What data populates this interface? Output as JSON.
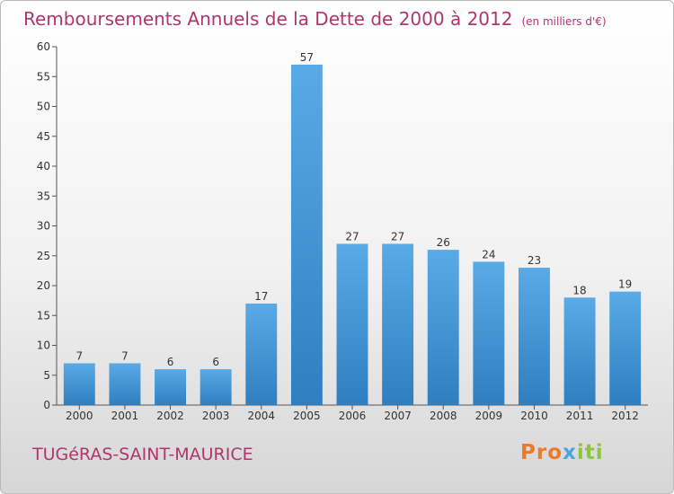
{
  "header": {
    "title": "Remboursements Annuels de la Dette de 2000 à 2012",
    "unit": "(en milliers d'€)"
  },
  "footer": {
    "place": "TUGéRAS-SAINT-MAURICE",
    "brand": "Proxiti"
  },
  "colors": {
    "accent": "#b0356e",
    "bar_light": "#5aaae6",
    "bar_dark": "#2f7fc0"
  },
  "chart_data": {
    "type": "bar",
    "categories": [
      "2000",
      "2001",
      "2002",
      "2003",
      "2004",
      "2005",
      "2006",
      "2007",
      "2008",
      "2009",
      "2010",
      "2011",
      "2012"
    ],
    "values": [
      7,
      7,
      6,
      6,
      17,
      57,
      27,
      27,
      26,
      24,
      23,
      18,
      19
    ],
    "ylim": [
      0,
      60
    ],
    "yticks": [
      0,
      5,
      10,
      15,
      20,
      25,
      30,
      35,
      40,
      45,
      50,
      55,
      60
    ],
    "grid": false,
    "data_labels": true
  }
}
